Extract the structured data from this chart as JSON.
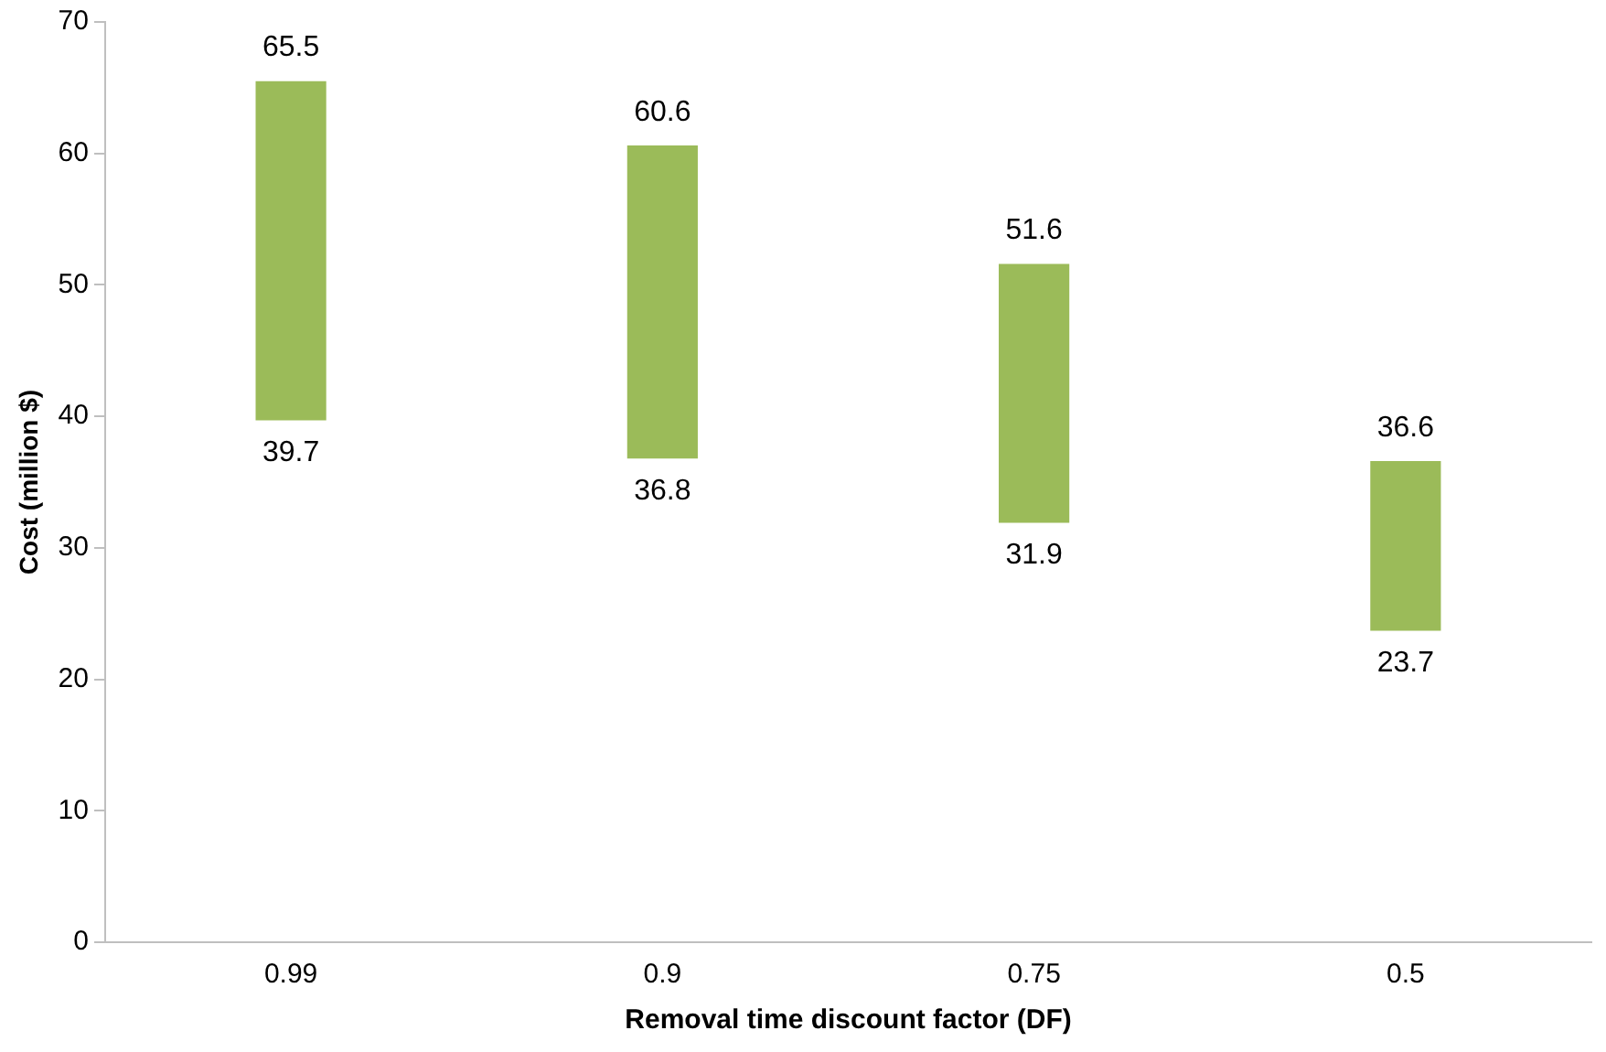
{
  "chart_data": {
    "type": "bar",
    "xlabel": "Removal time discount factor (DF)",
    "ylabel": "Cost (million $)",
    "categories": [
      "0.99",
      "0.9",
      "0.75",
      "0.5"
    ],
    "base": [
      39.7,
      36.8,
      31.9,
      23.7
    ],
    "values": [
      25.8,
      23.8,
      19.7,
      12.9
    ],
    "color": "#9bbb59",
    "ylim": [
      0,
      70
    ],
    "yticks": [
      0,
      10,
      20,
      30,
      40,
      50,
      60,
      70
    ],
    "grid": false,
    "legend": false,
    "annotations": [
      {
        "text": "65.5",
        "x": "0.99",
        "y": 65.5
      },
      {
        "text": "39.7",
        "x": "0.99",
        "y": 39.7
      },
      {
        "text": "60.6",
        "x": "0.9",
        "y": 60.6
      },
      {
        "text": "36.8",
        "x": "0.9",
        "y": 36.8
      },
      {
        "text": "51.6",
        "x": "0.75",
        "y": 51.6
      },
      {
        "text": "31.9",
        "x": "0.75",
        "y": 31.9
      },
      {
        "text": "36.6",
        "x": "0.5",
        "y": 36.6
      },
      {
        "text": "23.7",
        "x": "0.5",
        "y": 23.7
      }
    ]
  }
}
